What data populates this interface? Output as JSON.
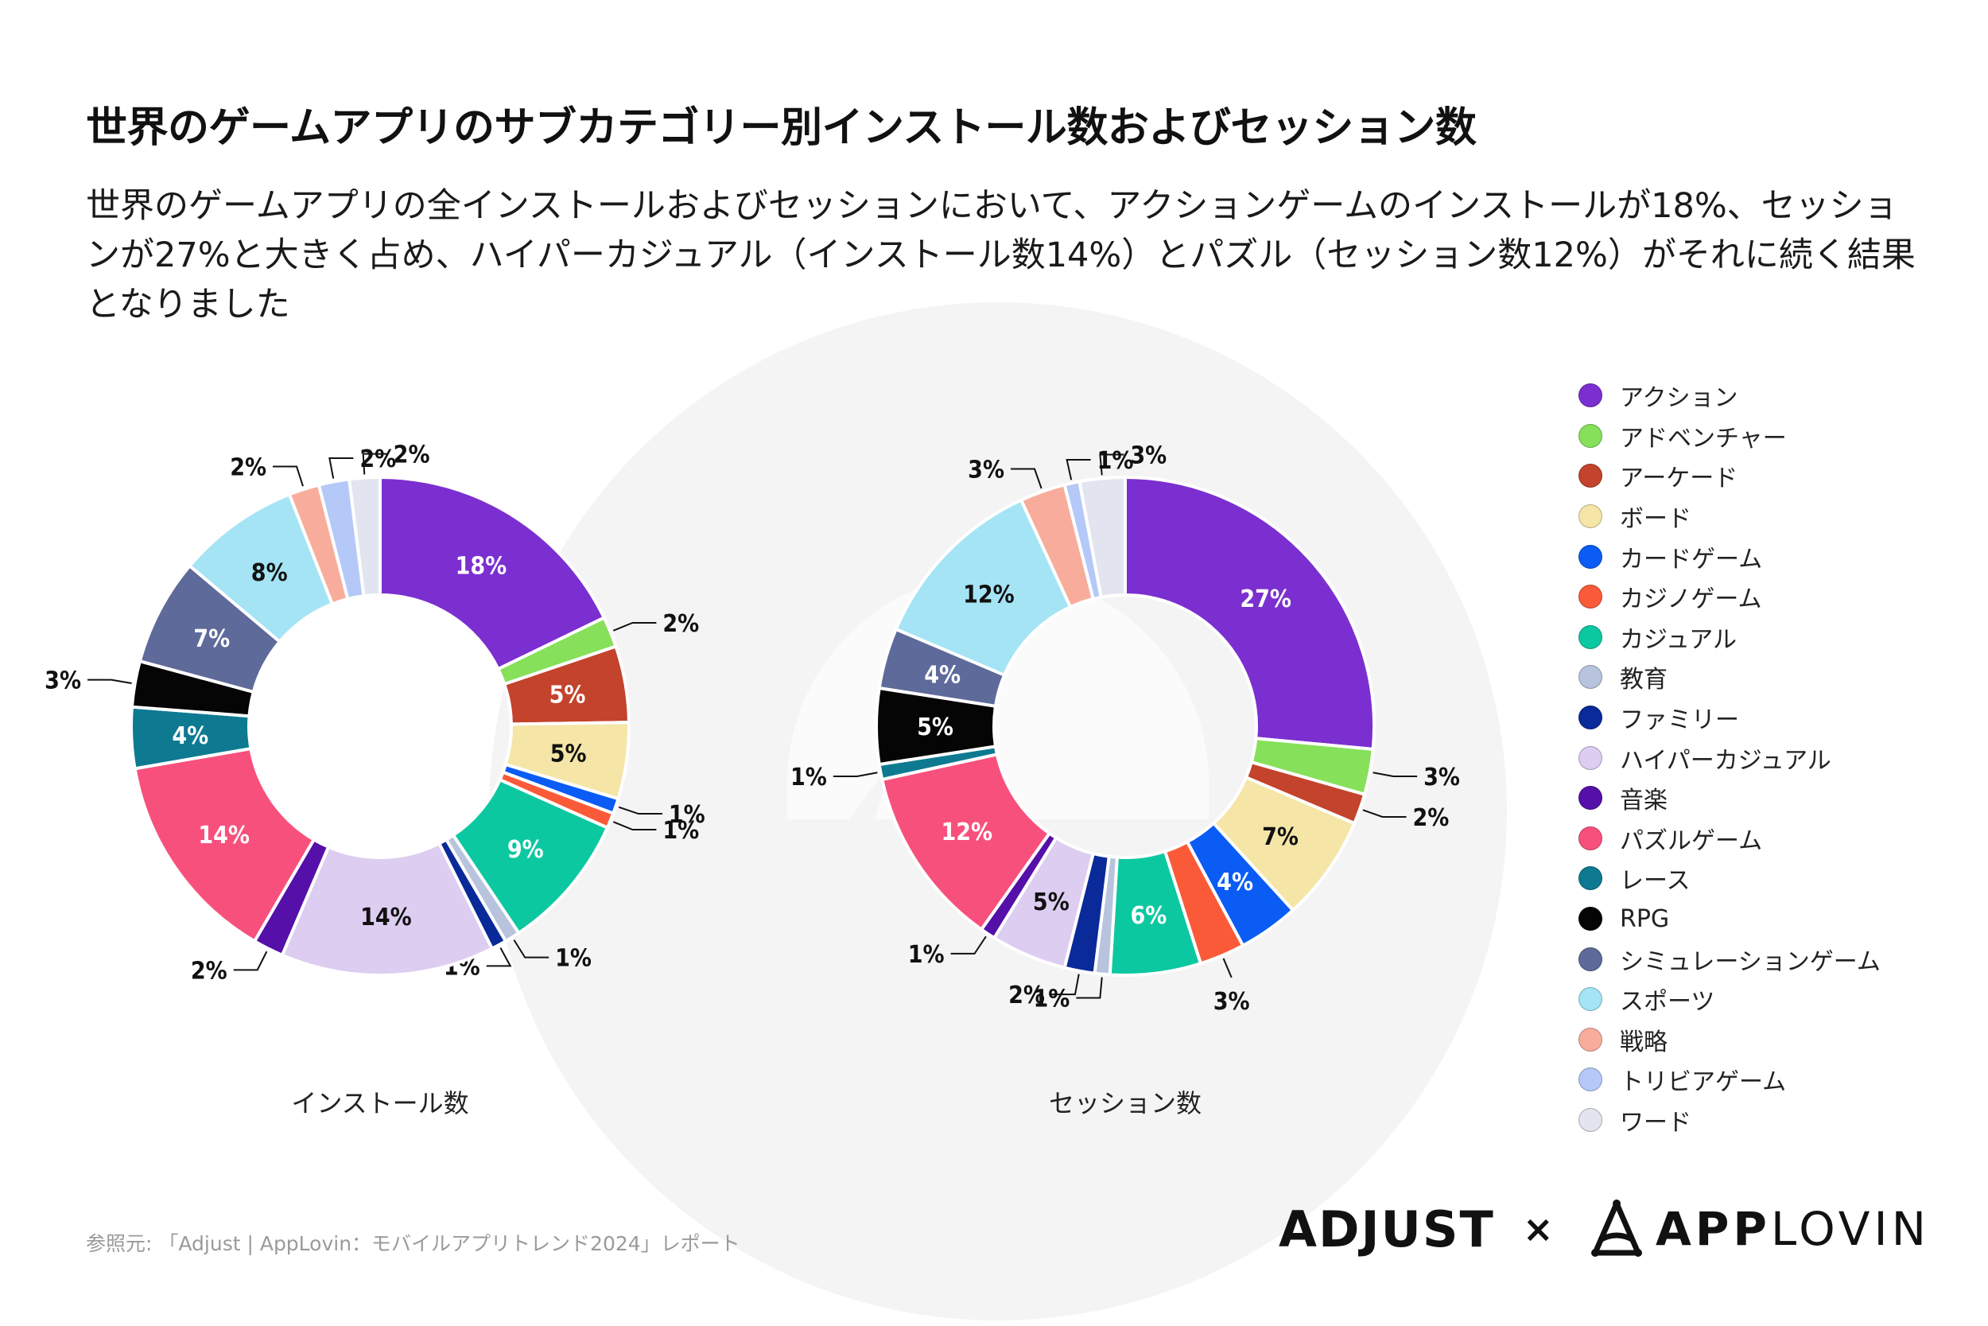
{
  "header": {
    "title": "世界のゲームアプリのサブカテゴリー別インストール数およびセッション数",
    "subtitle": "世界のゲームアプリの全インストールおよびセッションにおいて、アクションゲームのインストールが18%、セッションが27%と大きく占め、ハイパーカジュアル（インストール数14%）とパズル（セッション数12%）がそれに続く結果となりました"
  },
  "legend": {
    "items": [
      {
        "label": "アクション",
        "color": "#7B2FD0"
      },
      {
        "label": "アドベンチャー",
        "color": "#86E05A"
      },
      {
        "label": "アーケード",
        "color": "#C4432C"
      },
      {
        "label": "ボード",
        "color": "#F5E6A7"
      },
      {
        "label": "カードゲーム",
        "color": "#0A5CF5"
      },
      {
        "label": "カジノゲーム",
        "color": "#FB5A39"
      },
      {
        "label": "カジュアル",
        "color": "#0CC8A1"
      },
      {
        "label": "教育",
        "color": "#B8C3DE"
      },
      {
        "label": "ファミリー",
        "color": "#0A2A99"
      },
      {
        "label": "ハイパーカジュアル",
        "color": "#DDCDF1"
      },
      {
        "label": "音楽",
        "color": "#5410A8"
      },
      {
        "label": "パズルゲーム",
        "color": "#F8507C"
      },
      {
        "label": "レース",
        "color": "#0E7A92"
      },
      {
        "label": "RPG",
        "color": "#050505"
      },
      {
        "label": "シミュレーションゲーム",
        "color": "#5E6A9A"
      },
      {
        "label": "スポーツ",
        "color": "#A4E4F4"
      },
      {
        "label": "戦略",
        "color": "#F8AD9C"
      },
      {
        "label": "トリビアゲーム",
        "color": "#B4C9F8"
      },
      {
        "label": "ワード",
        "color": "#E2E5EF"
      }
    ]
  },
  "chart_data": [
    {
      "type": "pie",
      "title": "インストール数",
      "categories": [
        "アクション",
        "アドベンチャー",
        "アーケード",
        "ボード",
        "カードゲーム",
        "カジノゲーム",
        "カジュアル",
        "教育",
        "ファミリー",
        "ハイパーカジュアル",
        "音楽",
        "パズルゲーム",
        "レース",
        "RPG",
        "シミュレーションゲーム",
        "スポーツ",
        "戦略",
        "トリビアゲーム",
        "ワード"
      ],
      "values": [
        18,
        2,
        5,
        5,
        1,
        1,
        9,
        1,
        1,
        14,
        2,
        14,
        4,
        3,
        7,
        8,
        2,
        2,
        2
      ],
      "labels": [
        "18%",
        "2%",
        "5%",
        "5%",
        "1%",
        "1%",
        "9%",
        "1%",
        "1%",
        "14%",
        "2%",
        "14%",
        "4%",
        "3%",
        "7%",
        "8%",
        "2%",
        "2%",
        "2%"
      ]
    },
    {
      "type": "pie",
      "title": "セッション数",
      "categories": [
        "アクション",
        "アドベンチャー",
        "アーケード",
        "ボード",
        "カードゲーム",
        "カジノゲーム",
        "カジュアル",
        "教育",
        "ファミリー",
        "ハイパーカジュアル",
        "音楽",
        "パズルゲーム",
        "レース",
        "RPG",
        "シミュレーションゲーム",
        "スポーツ",
        "戦略",
        "トリビアゲーム",
        "ワード"
      ],
      "values": [
        27,
        3,
        2,
        7,
        4,
        3,
        6,
        1,
        2,
        5,
        1,
        12,
        1,
        5,
        4,
        12,
        3,
        1,
        3
      ],
      "labels": [
        "27%",
        "3%",
        "2%",
        "7%",
        "4%",
        "3%",
        "6%",
        "1%",
        "2%",
        "5%",
        "1%",
        "12%",
        "1%",
        "5%",
        "4%",
        "12%",
        "3%",
        "1%",
        "3%"
      ]
    }
  ],
  "footer": {
    "source": "参照元: 「Adjust | AppLovin：モバイルアプリトレンド2024」レポート",
    "logo_adjust": "ADJUST",
    "logo_x": "×",
    "logo_app": "APP",
    "logo_lovin": "LOVIN"
  }
}
